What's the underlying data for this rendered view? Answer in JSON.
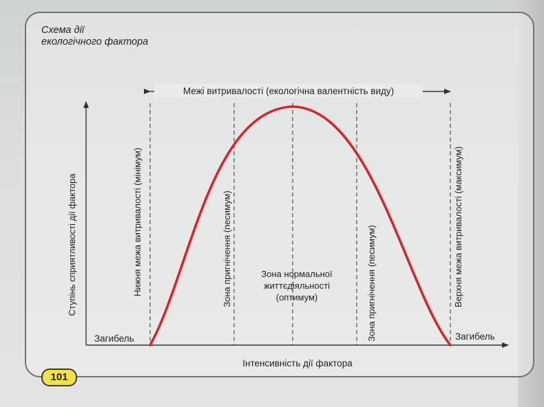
{
  "figure": {
    "title_line1": "Схема дії",
    "title_line2": "екологічного фактора",
    "tolerance_range": "Межі витривалості (екологічна валентність виду)",
    "y_axis_label": "Ступінь сприятливості дії фактора",
    "x_axis_label": "Інтенсивність дії фактора",
    "death_left": "Загибель",
    "death_right": "Загибель",
    "lower_limit": "Нижня межа витривалості (мінімум)",
    "upper_limit": "Верхня межа витривалості (максимум)",
    "pessimum_left": "Зона пригнічення (песимум)",
    "pessimum_right": "Зона пригнічення (песимум)",
    "optimum_line1": "Зона нормальної",
    "optimum_line2": "життєдіяльності",
    "optimum_line3": "(оптимум)",
    "page_number": "101",
    "curve_color": "#d8252a"
  }
}
